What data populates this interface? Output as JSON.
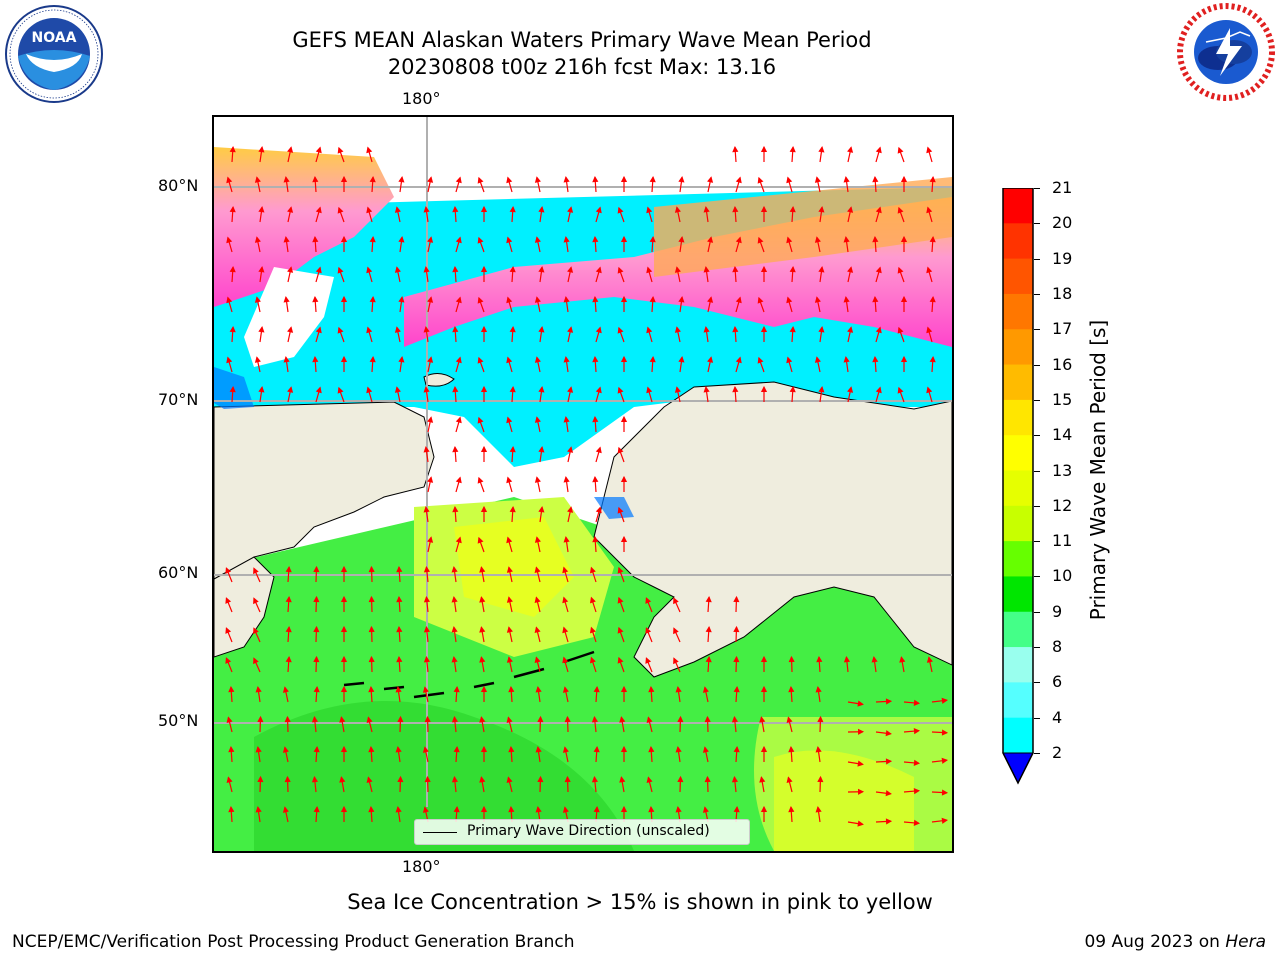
{
  "title": {
    "line1": "GEFS MEAN Alaskan Waters Primary Wave Mean Period",
    "line2": "20230808 t00z 216h fcst   Max: 13.16"
  },
  "logos": {
    "left": {
      "name": "NOAA",
      "icon": "noaa-logo",
      "ring_text": "NATIONAL OCEANIC AND ATMOSPHERIC ADMINISTRATION · U.S. DEPARTMENT OF COMMERCE"
    },
    "right": {
      "name": "National Weather Service",
      "icon": "nws-logo",
      "ring_text": "NATIONAL WEATHER SERVICE"
    }
  },
  "map": {
    "lon_label_top": "180°",
    "lon_label_bottom": "180°",
    "lat_labels": [
      "80°N",
      "70°N",
      "60°N",
      "50°N"
    ],
    "legend_label": "Primary Wave Direction (unscaled)",
    "colors": {
      "land": "#efedde",
      "ice_white": "#ffffff",
      "arrow": "#ff0000",
      "gridline": "#b0b0b0"
    }
  },
  "colorbar": {
    "title": "Primary Wave Mean Period [s]",
    "ticks": [
      "21",
      "20",
      "19",
      "18",
      "17",
      "16",
      "15",
      "14",
      "13",
      "12",
      "11",
      "10",
      "9",
      "8",
      "6",
      "4",
      "2"
    ],
    "colors": [
      "#ff0000",
      "#ff3300",
      "#ff5500",
      "#ff7700",
      "#ff9900",
      "#ffbb00",
      "#ffe600",
      "#ffff00",
      "#e6ff00",
      "#c8ff00",
      "#66ff00",
      "#00e600",
      "#44ff88",
      "#99ffee",
      "#55ffff",
      "#00ffff",
      "#0077ff"
    ],
    "extend_color": "#0000ff"
  },
  "note": "Sea Ice Concentration > 15% is shown in pink to yellow",
  "footer": {
    "left": "NCEP/EMC/Verification Post Processing Product Generation Branch",
    "right_date": "09 Aug 2023 on ",
    "right_host": "Hera"
  }
}
